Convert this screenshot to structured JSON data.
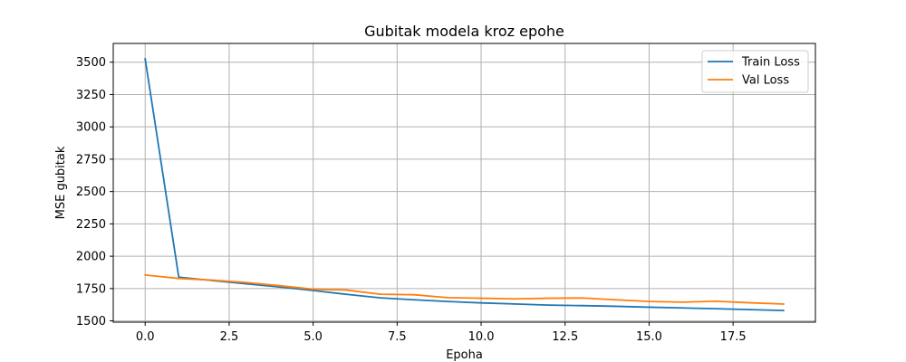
{
  "chart_data": {
    "type": "line",
    "title": "Gubitak modela kroz epohe",
    "xlabel": "Epoha",
    "ylabel": "MSE gubitak",
    "xlim": [
      -0.95,
      19.95
    ],
    "ylim": [
      1490,
      3645
    ],
    "xticks": [
      0.0,
      2.5,
      5.0,
      7.5,
      10.0,
      12.5,
      15.0,
      17.5
    ],
    "xtick_labels": [
      "0.0",
      "2.5",
      "5.0",
      "7.5",
      "10.0",
      "12.5",
      "15.0",
      "17.5"
    ],
    "yticks": [
      1500,
      1750,
      2000,
      2250,
      2500,
      2750,
      3000,
      3250,
      3500
    ],
    "ytick_labels": [
      "1500",
      "1750",
      "2000",
      "2250",
      "2500",
      "2750",
      "3000",
      "3250",
      "3500"
    ],
    "grid": true,
    "legend_position": "top-right",
    "x": [
      0,
      1,
      2,
      3,
      4,
      5,
      6,
      7,
      8,
      9,
      10,
      11,
      12,
      13,
      14,
      15,
      16,
      17,
      18,
      19
    ],
    "series": [
      {
        "name": "Train Loss",
        "color": "#1f77b4",
        "values": [
          3525,
          1838,
          1812,
          1787,
          1762,
          1735,
          1705,
          1678,
          1663,
          1650,
          1639,
          1631,
          1622,
          1618,
          1613,
          1606,
          1600,
          1594,
          1587,
          1580
        ]
      },
      {
        "name": "Val Loss",
        "color": "#ff7f0e",
        "values": [
          1855,
          1828,
          1815,
          1797,
          1772,
          1745,
          1738,
          1706,
          1702,
          1680,
          1675,
          1670,
          1675,
          1677,
          1663,
          1650,
          1645,
          1652,
          1640,
          1630
        ]
      }
    ]
  }
}
